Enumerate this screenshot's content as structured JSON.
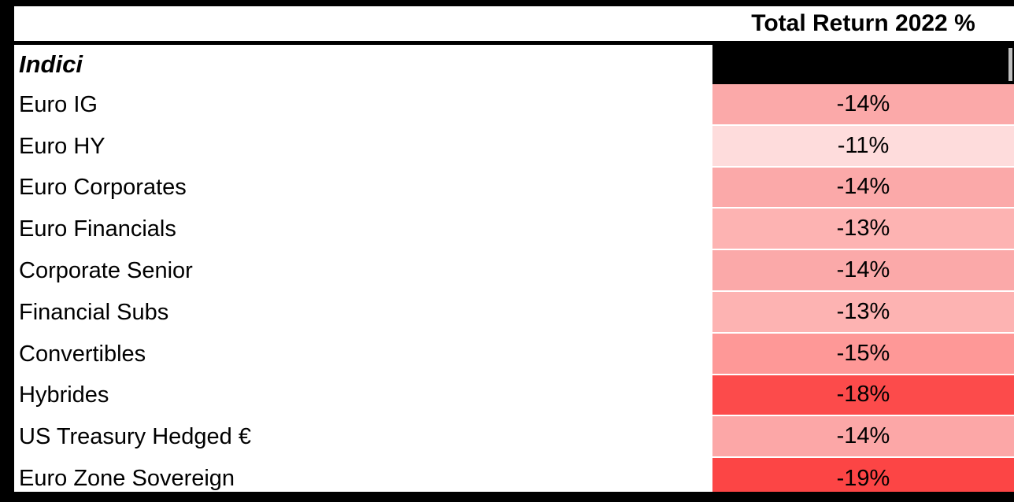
{
  "table": {
    "value_column_header": "Total Return 2022 %",
    "group_label": "Indici",
    "rows": [
      {
        "label": "Euro IG",
        "value": "-14%",
        "color": "#FBA9A9"
      },
      {
        "label": "Euro HY",
        "value": "-11%",
        "color": "#FEDCDC"
      },
      {
        "label": "Euro Corporates",
        "value": "-14%",
        "color": "#FBA9A9"
      },
      {
        "label": "Euro Financials",
        "value": "-13%",
        "color": "#FDB3B2"
      },
      {
        "label": "Corporate Senior",
        "value": "-14%",
        "color": "#FBA9A9"
      },
      {
        "label": "Financial Subs",
        "value": "-13%",
        "color": "#FDB3B2"
      },
      {
        "label": "Convertibles",
        "value": "-15%",
        "color": "#FE9897"
      },
      {
        "label": "Hybrides",
        "value": "-18%",
        "color": "#FC4B4B"
      },
      {
        "label": "US Treasury Hedged €",
        "value": "-14%",
        "color": "#FCA7A7"
      },
      {
        "label": "Euro Zone Sovereign",
        "value": "-19%",
        "color": "#FC4545"
      }
    ],
    "colors": {
      "frame": "#000000",
      "group_value_cell": "#000000",
      "sliver": "#BFBFBF",
      "separator": "#FFFFFF"
    }
  },
  "chart_data": {
    "type": "table",
    "title": "Total Return 2022 %",
    "group": "Indici",
    "categories": [
      "Euro IG",
      "Euro HY",
      "Euro Corporates",
      "Euro Financials",
      "Corporate Senior",
      "Financial Subs",
      "Convertibles",
      "Hybrides",
      "US Treasury Hedged €",
      "Euro Zone Sovereign"
    ],
    "values": [
      -14,
      -11,
      -14,
      -13,
      -14,
      -13,
      -15,
      -18,
      -14,
      -19
    ],
    "value_unit": "percent",
    "layout_hints": {
      "value_column": "heatmap shading, white-to-red scale (more negative = deeper red)",
      "grid": "off",
      "legend": "none"
    }
  }
}
